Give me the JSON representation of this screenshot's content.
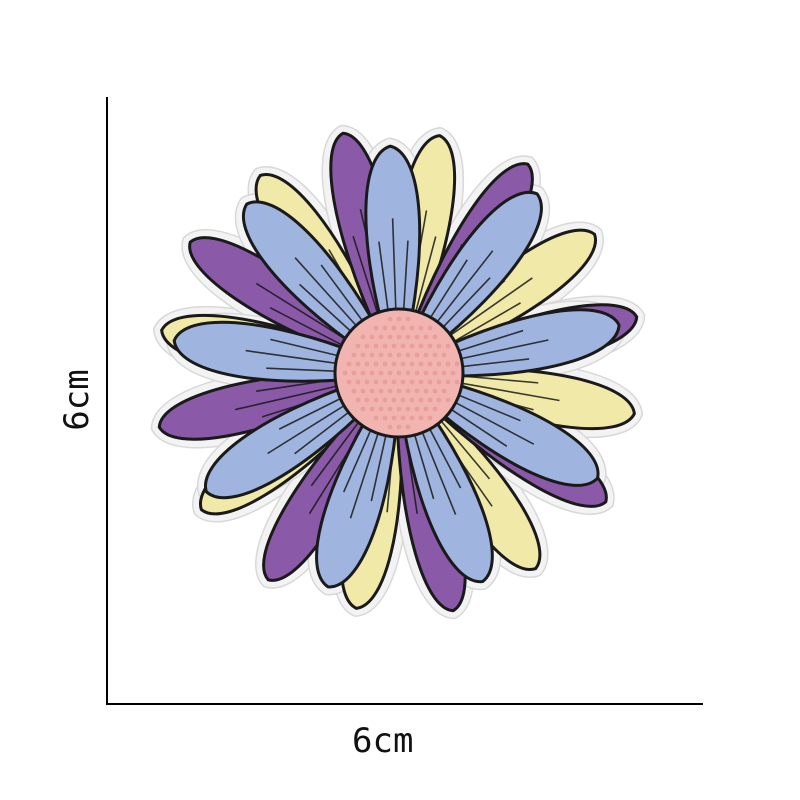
{
  "dimensions": {
    "width_label": "6cm",
    "height_label": "6cm"
  },
  "patch": {
    "subject": "daisy-flower-patch",
    "colors": {
      "backing": "#f3f3f3",
      "outline": "#1a1a1a",
      "purple": "#8a59a8",
      "blue": "#9fb4de",
      "yellow": "#f1e9a8",
      "center": "#f2b4b0"
    }
  }
}
